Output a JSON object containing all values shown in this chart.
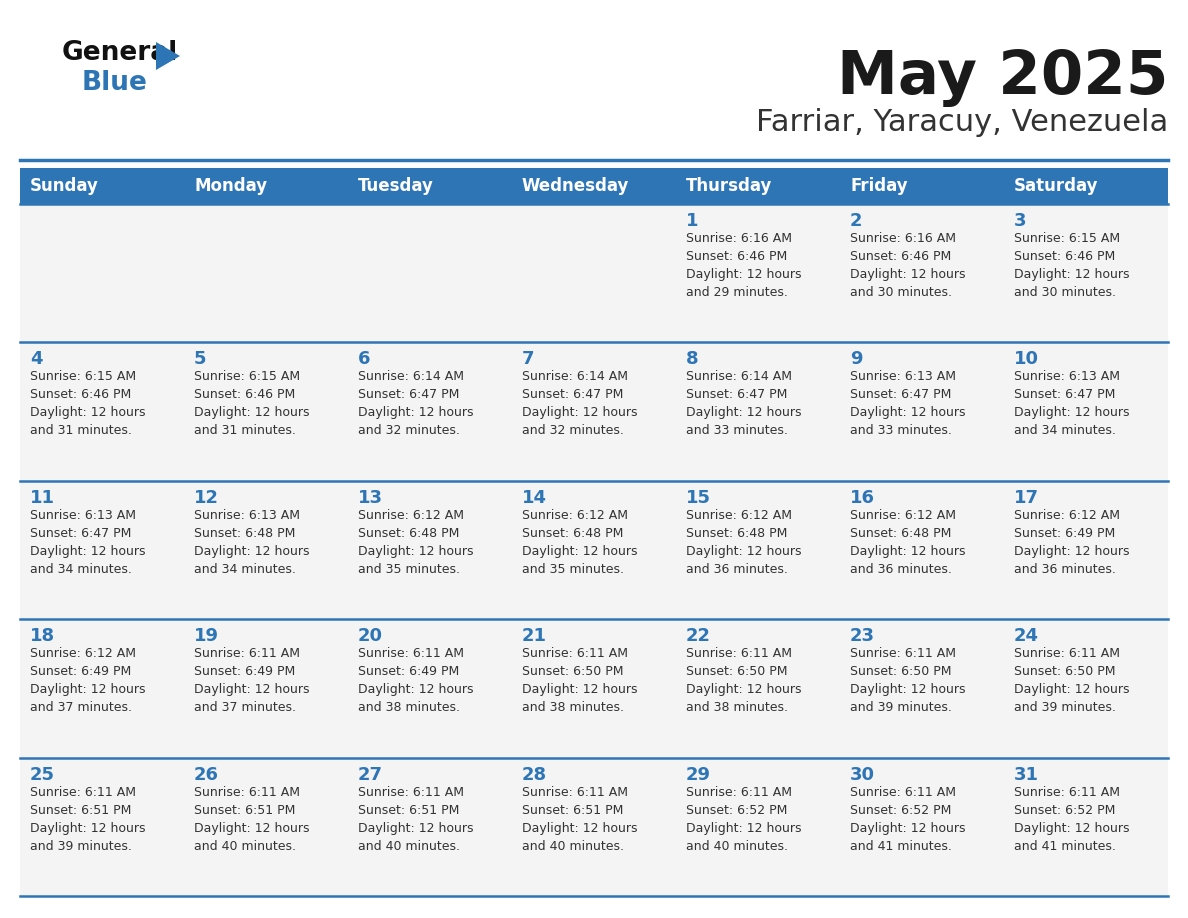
{
  "title": "May 2025",
  "subtitle": "Farriar, Yaracuy, Venezuela",
  "header_bg": "#2E75B6",
  "header_text_color": "#FFFFFF",
  "cell_bg": "#F4F4F4",
  "day_number_color": "#2E75B6",
  "info_text_color": "#333333",
  "border_color": "#2E75B6",
  "days_of_week": [
    "Sunday",
    "Monday",
    "Tuesday",
    "Wednesday",
    "Thursday",
    "Friday",
    "Saturday"
  ],
  "calendar": [
    [
      {
        "day": "",
        "info": ""
      },
      {
        "day": "",
        "info": ""
      },
      {
        "day": "",
        "info": ""
      },
      {
        "day": "",
        "info": ""
      },
      {
        "day": "1",
        "info": "Sunrise: 6:16 AM\nSunset: 6:46 PM\nDaylight: 12 hours\nand 29 minutes."
      },
      {
        "day": "2",
        "info": "Sunrise: 6:16 AM\nSunset: 6:46 PM\nDaylight: 12 hours\nand 30 minutes."
      },
      {
        "day": "3",
        "info": "Sunrise: 6:15 AM\nSunset: 6:46 PM\nDaylight: 12 hours\nand 30 minutes."
      }
    ],
    [
      {
        "day": "4",
        "info": "Sunrise: 6:15 AM\nSunset: 6:46 PM\nDaylight: 12 hours\nand 31 minutes."
      },
      {
        "day": "5",
        "info": "Sunrise: 6:15 AM\nSunset: 6:46 PM\nDaylight: 12 hours\nand 31 minutes."
      },
      {
        "day": "6",
        "info": "Sunrise: 6:14 AM\nSunset: 6:47 PM\nDaylight: 12 hours\nand 32 minutes."
      },
      {
        "day": "7",
        "info": "Sunrise: 6:14 AM\nSunset: 6:47 PM\nDaylight: 12 hours\nand 32 minutes."
      },
      {
        "day": "8",
        "info": "Sunrise: 6:14 AM\nSunset: 6:47 PM\nDaylight: 12 hours\nand 33 minutes."
      },
      {
        "day": "9",
        "info": "Sunrise: 6:13 AM\nSunset: 6:47 PM\nDaylight: 12 hours\nand 33 minutes."
      },
      {
        "day": "10",
        "info": "Sunrise: 6:13 AM\nSunset: 6:47 PM\nDaylight: 12 hours\nand 34 minutes."
      }
    ],
    [
      {
        "day": "11",
        "info": "Sunrise: 6:13 AM\nSunset: 6:47 PM\nDaylight: 12 hours\nand 34 minutes."
      },
      {
        "day": "12",
        "info": "Sunrise: 6:13 AM\nSunset: 6:48 PM\nDaylight: 12 hours\nand 34 minutes."
      },
      {
        "day": "13",
        "info": "Sunrise: 6:12 AM\nSunset: 6:48 PM\nDaylight: 12 hours\nand 35 minutes."
      },
      {
        "day": "14",
        "info": "Sunrise: 6:12 AM\nSunset: 6:48 PM\nDaylight: 12 hours\nand 35 minutes."
      },
      {
        "day": "15",
        "info": "Sunrise: 6:12 AM\nSunset: 6:48 PM\nDaylight: 12 hours\nand 36 minutes."
      },
      {
        "day": "16",
        "info": "Sunrise: 6:12 AM\nSunset: 6:48 PM\nDaylight: 12 hours\nand 36 minutes."
      },
      {
        "day": "17",
        "info": "Sunrise: 6:12 AM\nSunset: 6:49 PM\nDaylight: 12 hours\nand 36 minutes."
      }
    ],
    [
      {
        "day": "18",
        "info": "Sunrise: 6:12 AM\nSunset: 6:49 PM\nDaylight: 12 hours\nand 37 minutes."
      },
      {
        "day": "19",
        "info": "Sunrise: 6:11 AM\nSunset: 6:49 PM\nDaylight: 12 hours\nand 37 minutes."
      },
      {
        "day": "20",
        "info": "Sunrise: 6:11 AM\nSunset: 6:49 PM\nDaylight: 12 hours\nand 38 minutes."
      },
      {
        "day": "21",
        "info": "Sunrise: 6:11 AM\nSunset: 6:50 PM\nDaylight: 12 hours\nand 38 minutes."
      },
      {
        "day": "22",
        "info": "Sunrise: 6:11 AM\nSunset: 6:50 PM\nDaylight: 12 hours\nand 38 minutes."
      },
      {
        "day": "23",
        "info": "Sunrise: 6:11 AM\nSunset: 6:50 PM\nDaylight: 12 hours\nand 39 minutes."
      },
      {
        "day": "24",
        "info": "Sunrise: 6:11 AM\nSunset: 6:50 PM\nDaylight: 12 hours\nand 39 minutes."
      }
    ],
    [
      {
        "day": "25",
        "info": "Sunrise: 6:11 AM\nSunset: 6:51 PM\nDaylight: 12 hours\nand 39 minutes."
      },
      {
        "day": "26",
        "info": "Sunrise: 6:11 AM\nSunset: 6:51 PM\nDaylight: 12 hours\nand 40 minutes."
      },
      {
        "day": "27",
        "info": "Sunrise: 6:11 AM\nSunset: 6:51 PM\nDaylight: 12 hours\nand 40 minutes."
      },
      {
        "day": "28",
        "info": "Sunrise: 6:11 AM\nSunset: 6:51 PM\nDaylight: 12 hours\nand 40 minutes."
      },
      {
        "day": "29",
        "info": "Sunrise: 6:11 AM\nSunset: 6:52 PM\nDaylight: 12 hours\nand 40 minutes."
      },
      {
        "day": "30",
        "info": "Sunrise: 6:11 AM\nSunset: 6:52 PM\nDaylight: 12 hours\nand 41 minutes."
      },
      {
        "day": "31",
        "info": "Sunrise: 6:11 AM\nSunset: 6:52 PM\nDaylight: 12 hours\nand 41 minutes."
      }
    ]
  ]
}
